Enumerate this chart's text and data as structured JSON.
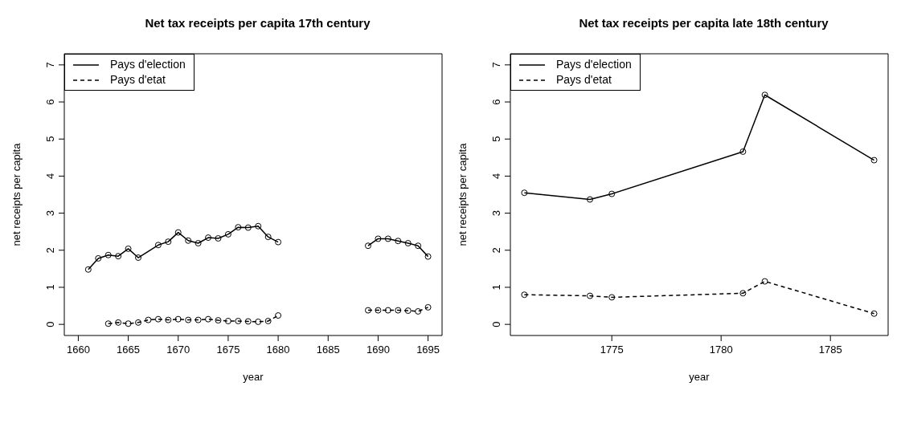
{
  "chart_data": [
    {
      "type": "line",
      "title": "Net tax receipts per capita 17th century",
      "xlabel": "year",
      "ylabel": "net receipts per capita",
      "xlim": [
        1658.6,
        1696.4
      ],
      "xticks": [
        1660,
        1665,
        1670,
        1675,
        1680,
        1685,
        1690,
        1695
      ],
      "ylim": [
        -0.3,
        7.3
      ],
      "yticks": [
        0,
        1,
        2,
        3,
        4,
        5,
        6,
        7
      ],
      "legend": "top left",
      "marker": "circle",
      "grid": false,
      "series": [
        {
          "name": "Pays d'election",
          "color": "#000000",
          "line_style": "solid",
          "x": [
            1661,
            1662,
            1663,
            1664,
            1665,
            1666,
            1668,
            1669,
            1670,
            1671,
            1672,
            1673,
            1674,
            1675,
            1676,
            1677,
            1678,
            1679,
            1680,
            1685,
            1689,
            1690,
            1691,
            1692,
            1693,
            1694,
            1695
          ],
          "values": [
            1.48,
            1.78,
            1.87,
            1.84,
            2.04,
            1.8,
            2.14,
            2.23,
            2.48,
            2.26,
            2.19,
            2.34,
            2.32,
            2.43,
            2.62,
            2.61,
            2.65,
            2.36,
            2.22,
            null,
            2.12,
            2.31,
            2.31,
            2.25,
            2.19,
            2.12,
            1.83
          ]
        },
        {
          "name": "Pays d'etat",
          "color": "#000000",
          "line_style": "dashed",
          "x": [
            1663,
            1664,
            1665,
            1666,
            1667,
            1668,
            1669,
            1670,
            1671,
            1672,
            1673,
            1674,
            1675,
            1676,
            1677,
            1678,
            1679,
            1680,
            1685,
            1689,
            1690,
            1691,
            1692,
            1693,
            1694,
            1695
          ],
          "values": [
            0.02,
            0.05,
            0.02,
            0.05,
            0.12,
            0.14,
            0.12,
            0.14,
            0.12,
            0.12,
            0.14,
            0.11,
            0.09,
            0.09,
            0.08,
            0.07,
            0.09,
            0.24,
            null,
            0.38,
            0.38,
            0.38,
            0.38,
            0.37,
            0.35,
            0.46
          ]
        }
      ]
    },
    {
      "type": "line",
      "title": "Net tax receipts per capita late 18th century",
      "xlabel": "year",
      "ylabel": "net receipts per capita",
      "xlim": [
        1770.36,
        1787.64
      ],
      "xticks": [
        1775,
        1780,
        1785
      ],
      "ylim": [
        -0.3,
        7.3
      ],
      "yticks": [
        0,
        1,
        2,
        3,
        4,
        5,
        6,
        7
      ],
      "legend": "top left",
      "marker": "circle",
      "grid": false,
      "series": [
        {
          "name": "Pays d'election",
          "color": "#000000",
          "line_style": "solid",
          "x": [
            1771,
            1774,
            1775,
            1781,
            1782,
            1787
          ],
          "values": [
            3.55,
            3.37,
            3.52,
            4.66,
            6.19,
            4.43
          ]
        },
        {
          "name": "Pays d'etat",
          "color": "#000000",
          "line_style": "dashed",
          "x": [
            1771,
            1774,
            1775,
            1781,
            1782,
            1787
          ],
          "values": [
            0.8,
            0.77,
            0.73,
            0.84,
            1.16,
            0.29
          ]
        }
      ]
    }
  ]
}
